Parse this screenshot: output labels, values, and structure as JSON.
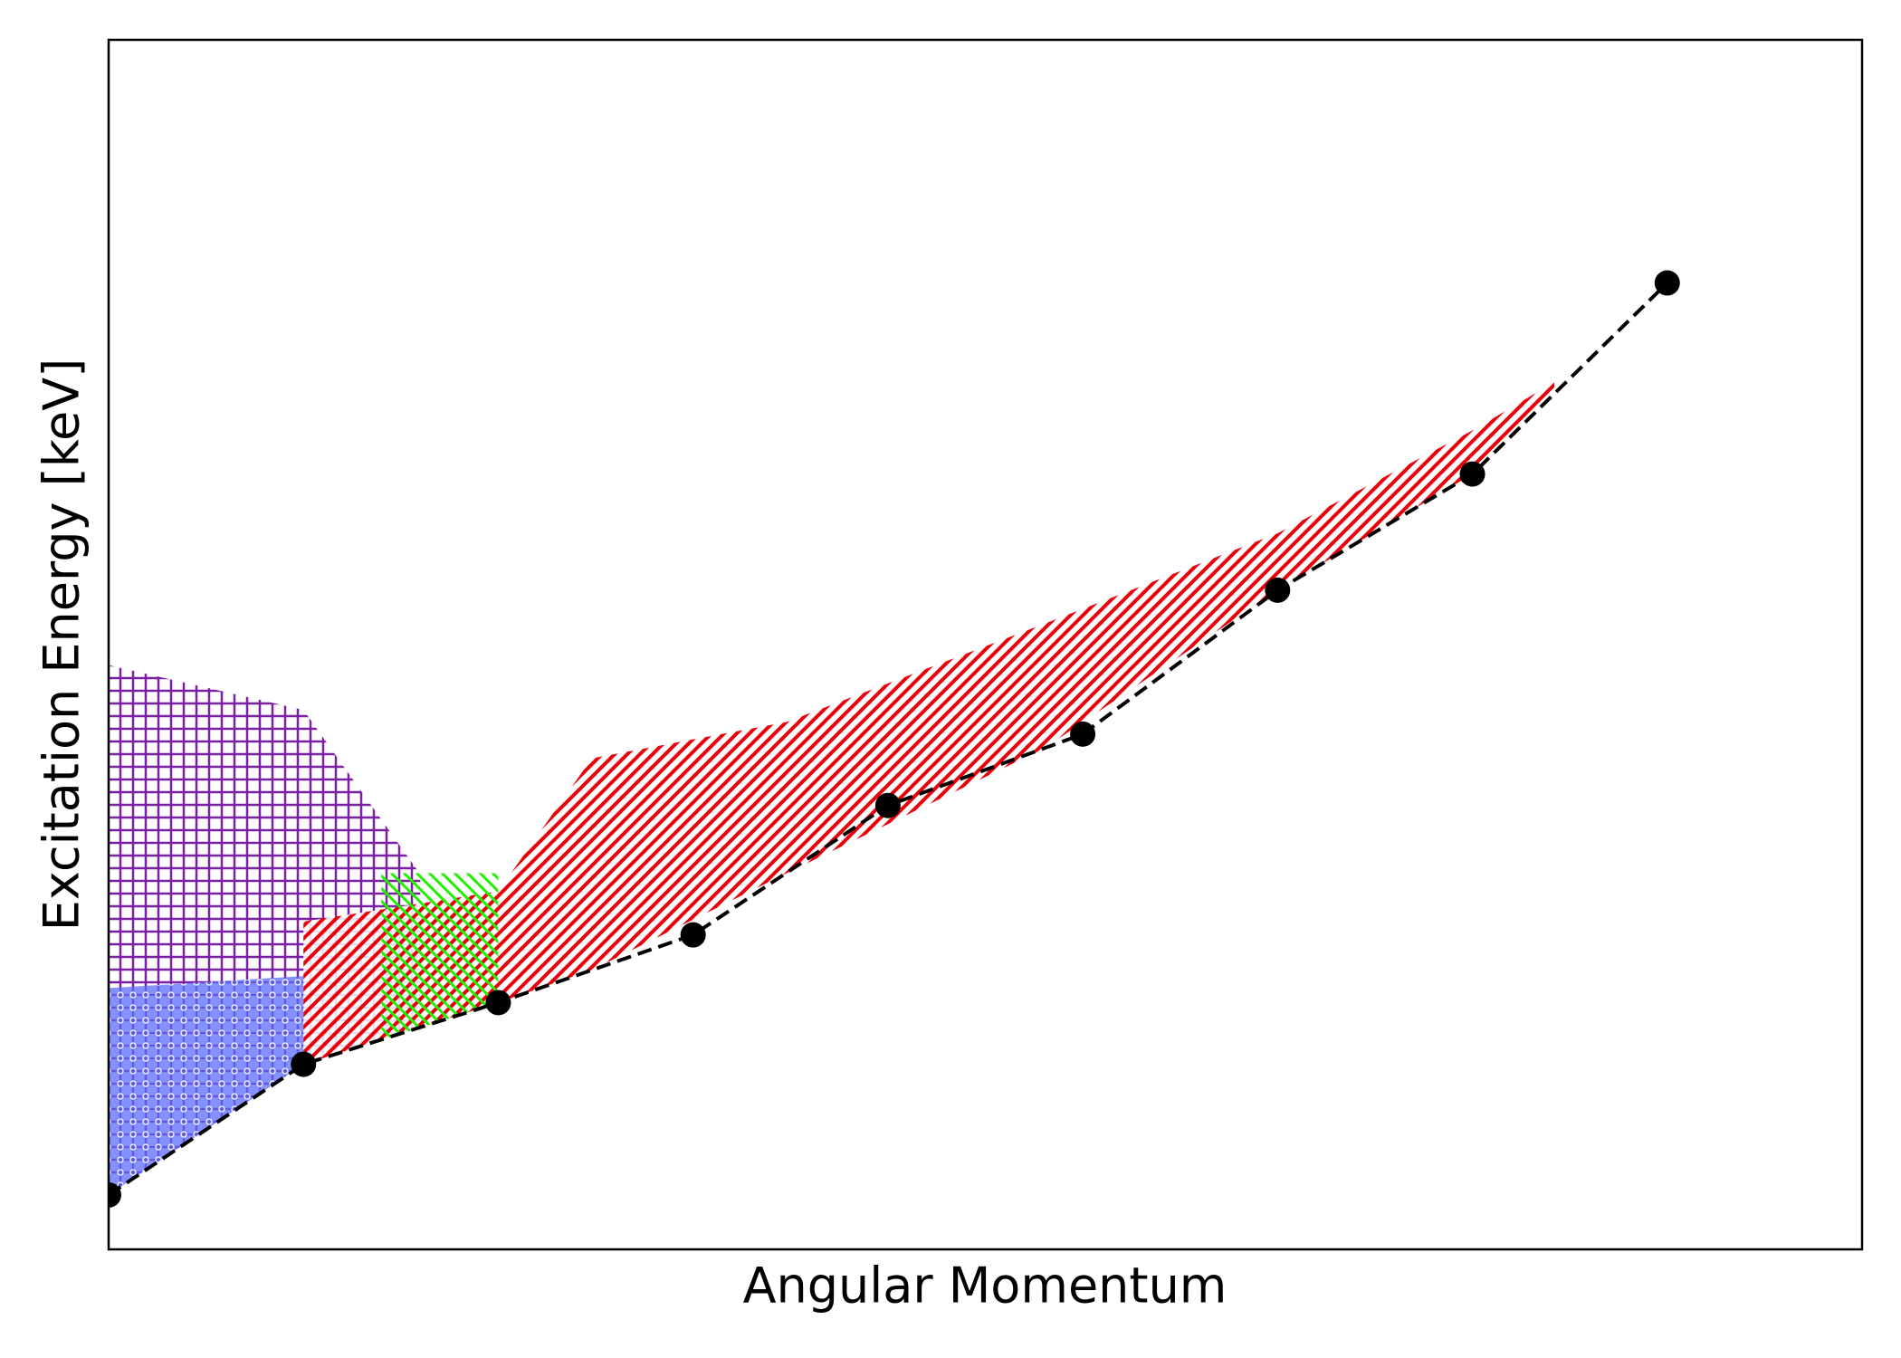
{
  "chart_data": {
    "type": "line",
    "xlabel": "Angular Momentum",
    "ylabel": "Excitation Energy [keV]",
    "x": [
      0,
      1,
      2,
      3,
      4,
      5,
      6,
      7,
      8
    ],
    "series": [
      {
        "color": "#000000",
        "values": [
          4.5,
          15.3,
          20.4,
          26.0,
          36.7,
          42.6,
          54.5,
          64.1,
          79.9
        ]
      }
    ],
    "regions": [
      {
        "color": "#7b1fa2",
        "hatch": "+",
        "x": [
          0,
          1,
          1.6
        ],
        "upper": [
          48.3,
          44.6,
          31.0
        ],
        "lower": [
          4.5,
          15.3,
          18.4
        ]
      },
      {
        "color": "#5a6cff",
        "hatch": "o",
        "x": [
          0,
          1
        ],
        "upper": [
          21.6,
          22.6
        ],
        "lower": [
          4.5,
          15.3
        ]
      },
      {
        "color": "#e8000b",
        "hatch": "/",
        "x": [
          1,
          2,
          2.48,
          3.48,
          4.8,
          6,
          7,
          7.42
        ],
        "upper": [
          27.1,
          29.6,
          40.6,
          43.6,
          51.7,
          59.2,
          67.7,
          71.7
        ],
        "lower": [
          15.3,
          20.4,
          23.1,
          31.1,
          41.4,
          54.5,
          64.1,
          70.7
        ]
      },
      {
        "color": "#22ee00",
        "hatch": "x",
        "x": [
          1.4,
          2
        ],
        "upper": [
          31.1,
          31.1
        ],
        "lower": [
          17.3,
          20.4
        ]
      }
    ],
    "xlim": [
      0,
      9
    ],
    "ylim": [
      0,
      100
    ]
  }
}
